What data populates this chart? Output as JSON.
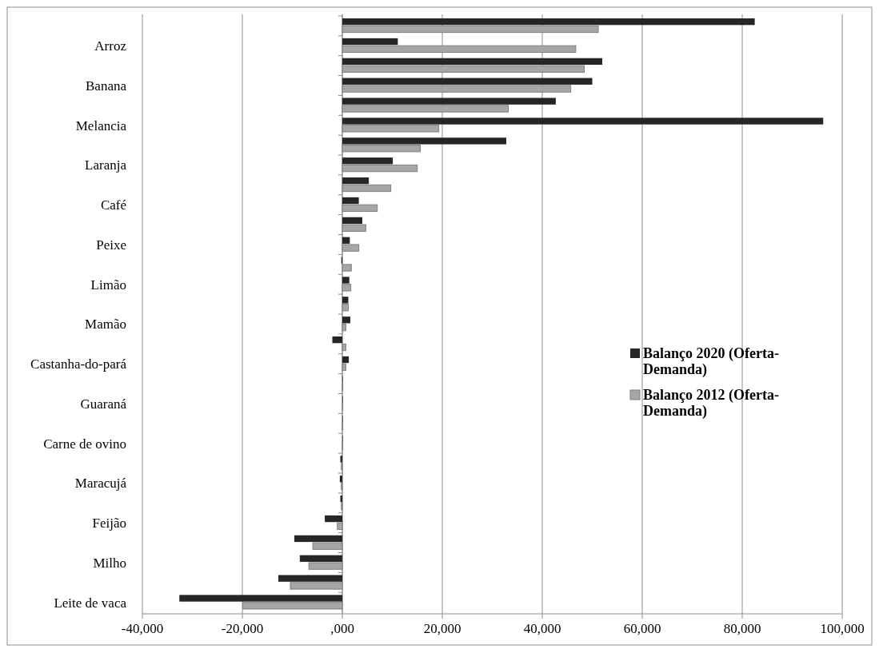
{
  "chart_data": {
    "type": "bar",
    "orientation": "horizontal",
    "categories": [
      null,
      "Arroz",
      null,
      "Banana",
      null,
      "Melancia",
      null,
      "Laranja",
      null,
      "Café",
      null,
      "Peixe",
      null,
      "Limão",
      null,
      "Mamão",
      null,
      "Castanha-do-pará",
      null,
      "Guaraná",
      null,
      "Carne de ovino",
      null,
      "Maracujá",
      null,
      "Feijão",
      null,
      "Milho",
      null,
      "Leite de vaca"
    ],
    "series": [
      {
        "name": "Balanço 2020 (Oferta-Demanda)",
        "color": "#262626",
        "values": [
          82500,
          11100,
          52000,
          50000,
          42700,
          96200,
          32800,
          10100,
          5300,
          3300,
          4000,
          1500,
          -200,
          1400,
          1200,
          1600,
          -2000,
          1300,
          100,
          100,
          100,
          100,
          -400,
          -500,
          -400,
          -3500,
          -9600,
          -8500,
          -12800,
          -32600
        ]
      },
      {
        "name": "Balanço 2012 (Oferta-Demanda)",
        "color": "#a6a6a6",
        "values": [
          51200,
          46700,
          48400,
          45700,
          33200,
          19300,
          15600,
          15000,
          9700,
          7000,
          4700,
          3300,
          1800,
          1700,
          1200,
          700,
          700,
          700,
          100,
          100,
          100,
          100,
          -200,
          -200,
          -200,
          -1000,
          -5900,
          -6700,
          -10400,
          -19900
        ]
      }
    ],
    "xlim": [
      -40000,
      100000
    ],
    "xticks": [
      {
        "value": -40000,
        "label": "-40,000"
      },
      {
        "value": -20000,
        "label": "-20,000"
      },
      {
        "value": 0,
        "label": ",000"
      },
      {
        "value": 20000,
        "label": "20,000"
      },
      {
        "value": 40000,
        "label": "40,000"
      },
      {
        "value": 60000,
        "label": "60,000"
      },
      {
        "value": 80000,
        "label": "80,000"
      },
      {
        "value": 100000,
        "label": "100,000"
      }
    ],
    "grid": "x",
    "legend": "right"
  }
}
